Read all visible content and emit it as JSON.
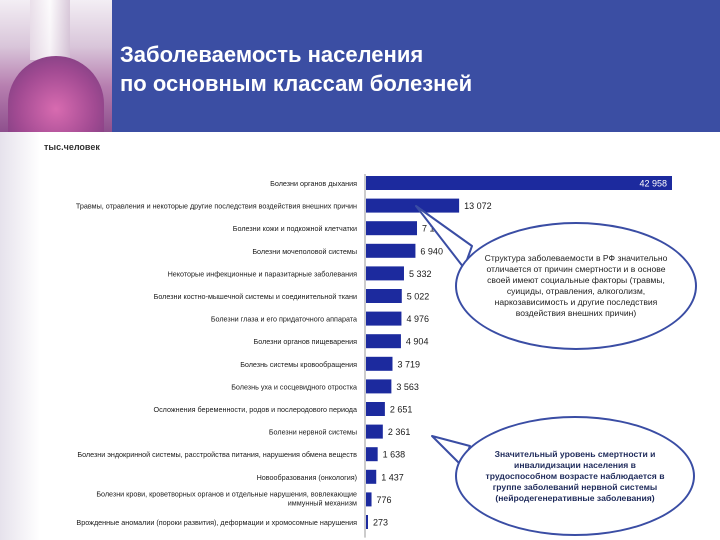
{
  "header": {
    "title_line1": "Заболеваемость населения",
    "title_line2": "по основным классам болезней"
  },
  "unit_label": "тыс.человек",
  "colors": {
    "header": "#3b4ea3",
    "bar": "#1c2a9e",
    "bubble_border": "#3a4da4"
  },
  "chart_data": {
    "type": "bar",
    "orientation": "horizontal",
    "categories": [
      "Болезни органов дыхания",
      "Травмы, отравления и некоторые другие последствия воздействия внешних причин",
      "Болезни кожи и подкожной клетчатки",
      "Болезни мочеполовой системы",
      "Некоторые инфекционные и паразитарные заболевания",
      "Болезни костно-мышечной системы и соединительной ткани",
      "Болезни глаза и его придаточного аппарата",
      "Болезни органов пищеварения",
      "Болезнь системы кровообращения",
      "Болезнь уха и сосцевидного отростка",
      "Осложнения беременности, родов и послеродового периода",
      "Болезни нервной системы",
      "Болезни эндокринной системы, расстройства питания, нарушения обмена веществ",
      "Новообразования (онкология)",
      "Болезни крови, кроветворных органов и отдельные нарушения, вовлекающие иммунный механизм",
      "Врожденные аномалии (пороки развития), деформации и хромосомные нарушения"
    ],
    "values": [
      42958,
      13072,
      7161,
      6940,
      5332,
      5022,
      4976,
      4904,
      3719,
      3563,
      2651,
      2361,
      1638,
      1437,
      776,
      273
    ],
    "value_labels": [
      "42 958",
      "13 072",
      "7 161",
      "6 940",
      "5 332",
      "5 022",
      "4 976",
      "4 904",
      "3 719",
      "3 563",
      "2 651",
      "2 361",
      "1 638",
      "1 437",
      "776",
      "273"
    ],
    "xlim": [
      0,
      42958
    ],
    "grid": false,
    "legend": "none",
    "title": "",
    "xlabel": "",
    "ylabel": ""
  },
  "callouts": [
    {
      "text": "Структура заболеваемости в РФ значительно отличается от причин смертности и в основе своей имеют социальные факторы (травмы, суициды, отравления, алкоголизм, наркозависимость и другие последствия воздействия внешних причин)"
    },
    {
      "text": "Значительный уровень смертности и инвалидизации населения в трудоспособном возрасте наблюдается в группе заболеваний нервной системы (нейродегенеративные заболевания)"
    }
  ]
}
